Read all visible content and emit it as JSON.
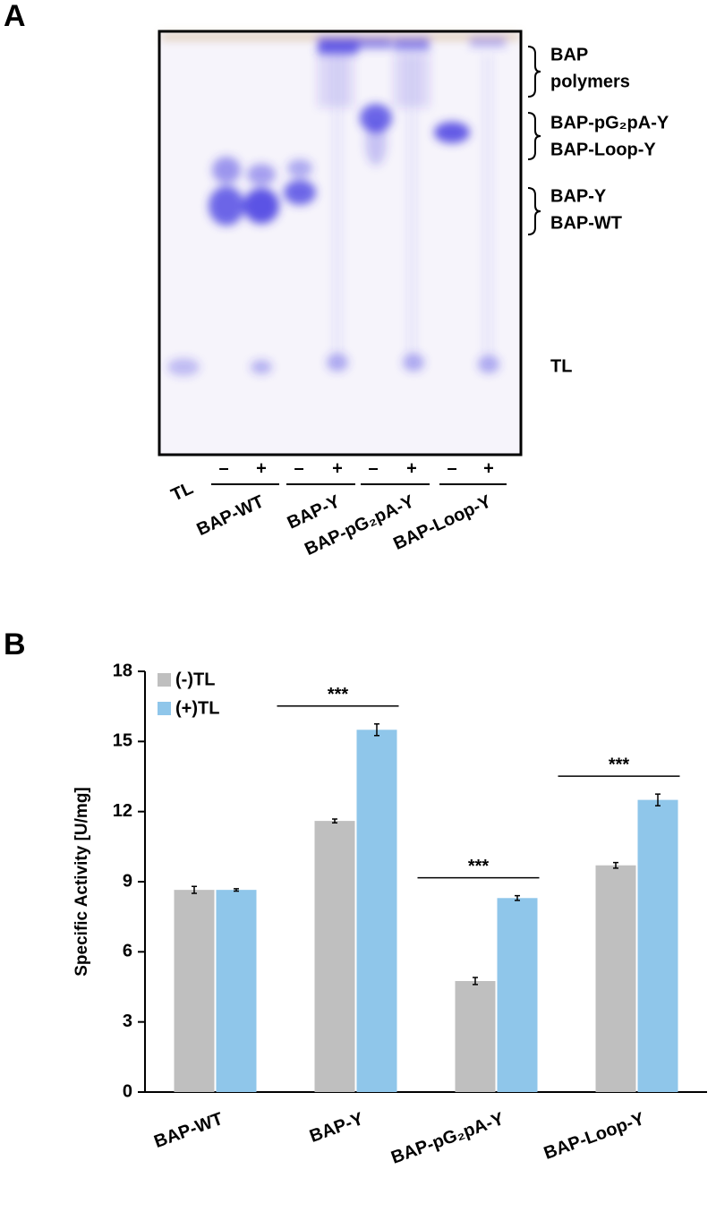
{
  "panel_a": {
    "label": "A",
    "band_labels": [
      {
        "lines": [
          "BAP",
          "polymers"
        ]
      },
      {
        "lines": [
          "BAP-pG₂pA-Y",
          "BAP-Loop-Y"
        ]
      },
      {
        "lines": [
          "BAP-Y",
          "BAP-WT"
        ]
      },
      {
        "lines": [
          "TL"
        ]
      }
    ],
    "lane_label": "TL",
    "lane_groups": [
      {
        "name": "BAP-WT",
        "lanes": [
          "–",
          "+"
        ]
      },
      {
        "name": "BAP-Y",
        "lanes": [
          "–",
          "+"
        ]
      },
      {
        "name": "BAP-pG₂pA-Y",
        "lanes": [
          "–",
          "+"
        ]
      },
      {
        "name": "BAP-Loop-Y",
        "lanes": [
          "–",
          "+"
        ]
      }
    ]
  },
  "chart_data": {
    "type": "bar",
    "panel_label": "B",
    "ylabel": "Specific Activity [U/mg]",
    "categories": [
      "BAP-WT",
      "BAP-Y",
      "BAP-pG₂pA-Y",
      "BAP-Loop-Y"
    ],
    "series": [
      {
        "name": "(-)TL",
        "color": "#bfbfbf",
        "values": [
          8.65,
          11.6,
          4.75,
          9.7
        ],
        "errors": [
          0.15,
          0.08,
          0.15,
          0.12
        ]
      },
      {
        "name": "(+)TL",
        "color": "#8fc6ea",
        "values": [
          8.65,
          15.5,
          8.3,
          12.5
        ],
        "errors": [
          0.05,
          0.25,
          0.1,
          0.25
        ]
      }
    ],
    "ylim": [
      0,
      18
    ],
    "yticks": [
      0,
      3,
      6,
      9,
      12,
      15,
      18
    ],
    "legend": "upper left",
    "significance": [
      {
        "category": "BAP-Y",
        "label": "***"
      },
      {
        "category": "BAP-pG₂pA-Y",
        "label": "***"
      },
      {
        "category": "BAP-Loop-Y",
        "label": "***"
      }
    ]
  }
}
